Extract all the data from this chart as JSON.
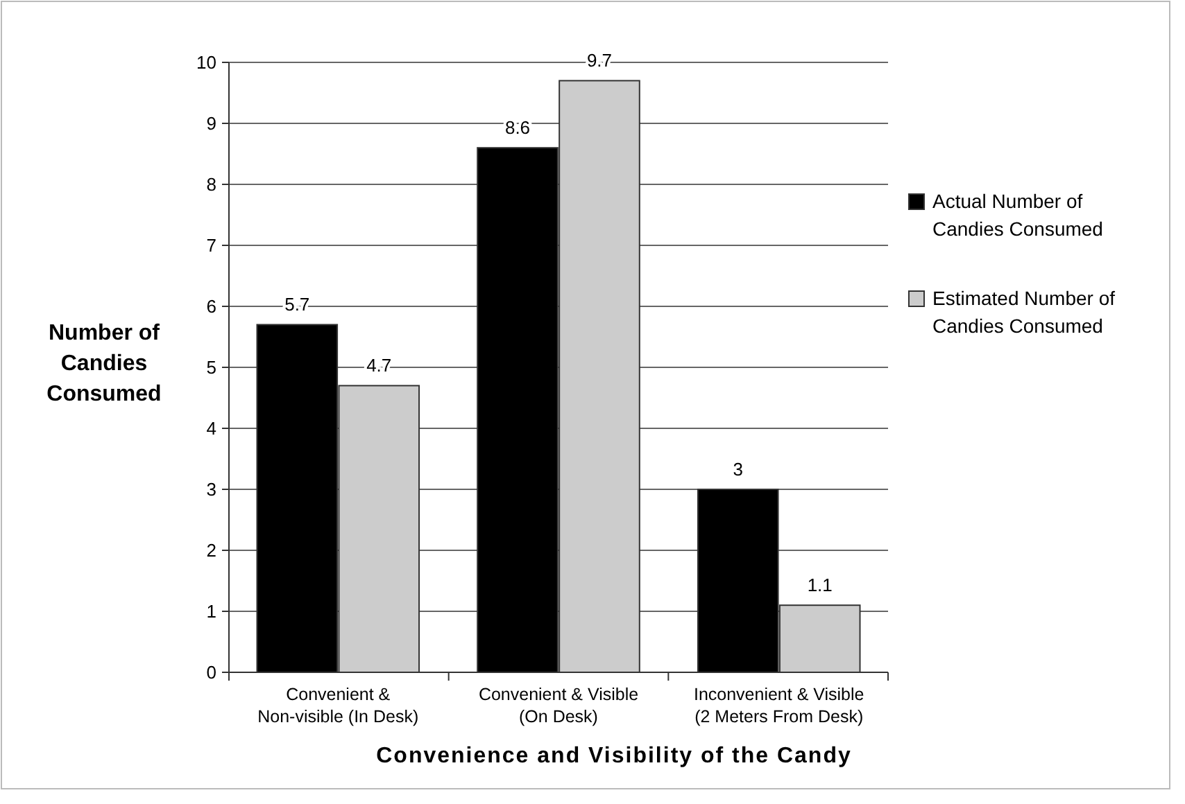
{
  "chart_data": {
    "type": "bar",
    "xlabel": "Convenience and Visibility of the Candy",
    "ylabel": "Number of Candies Consumed",
    "categories": [
      "Convenient & Non-visible (In Desk)",
      "Convenient & Visible (On Desk)",
      "Inconvenient & Visible (2 Meters From Desk)"
    ],
    "series": [
      {
        "name": "Actual Number of Candies Consumed",
        "color": "#000000",
        "values": [
          5.7,
          8.6,
          3
        ]
      },
      {
        "name": "Estimated Number of Candies Consumed",
        "color": "#cccccc",
        "values": [
          4.7,
          9.7,
          1.1
        ]
      }
    ],
    "ylim": [
      0,
      10
    ],
    "yticks": [
      0,
      1,
      2,
      3,
      4,
      5,
      6,
      7,
      8,
      9,
      10
    ],
    "grid": "y",
    "legend": "right",
    "data_labels": true
  }
}
